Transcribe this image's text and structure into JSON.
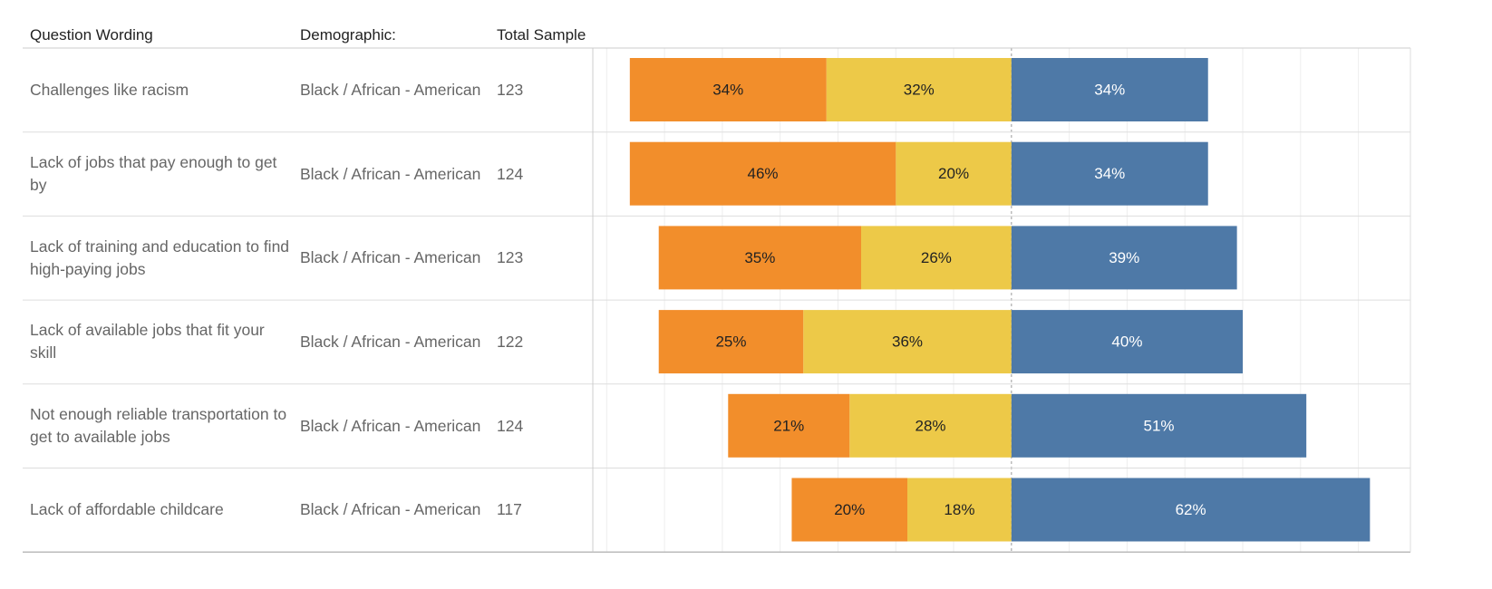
{
  "chart_data": {
    "type": "diverging_bar",
    "columns": [
      "Question Wording",
      "Demographic:",
      "Total Sample"
    ],
    "categories": [
      "Challenges like racism",
      "Lack of jobs that pay enough to get by",
      "Lack of training and education to find high-paying jobs",
      "Lack of available jobs that fit your skill",
      "Not enough reliable transportation to get to available jobs",
      "Lack of affordable childcare"
    ],
    "demographics": [
      "Black / African - American",
      "Black / African - American",
      "Black / African - American",
      "Black / African - American",
      "Black / African - American",
      "Black / African - American"
    ],
    "total_sample": [
      123,
      124,
      123,
      122,
      124,
      117
    ],
    "series": [
      {
        "color": "#f28e2b",
        "values": [
          34,
          46,
          35,
          25,
          21,
          20
        ],
        "value_labels": [
          "34%",
          "46%",
          "35%",
          "25%",
          "21%",
          "20%"
        ]
      },
      {
        "color": "#edc948",
        "values": [
          32,
          20,
          26,
          36,
          28,
          18
        ],
        "value_labels": [
          "32%",
          "20%",
          "26%",
          "36%",
          "28%",
          "18%"
        ]
      },
      {
        "color": "#4e79a7",
        "values": [
          34,
          34,
          39,
          40,
          51,
          62
        ],
        "value_labels": [
          "34%",
          "34%",
          "39%",
          "40%",
          "51%",
          "62%"
        ]
      }
    ],
    "xlim": [
      -72.4,
      69
    ],
    "xticks": [
      -70,
      -60,
      -50,
      -40,
      -30,
      -20,
      -10,
      0,
      10,
      20,
      30,
      40,
      50,
      60
    ],
    "grid": true
  }
}
